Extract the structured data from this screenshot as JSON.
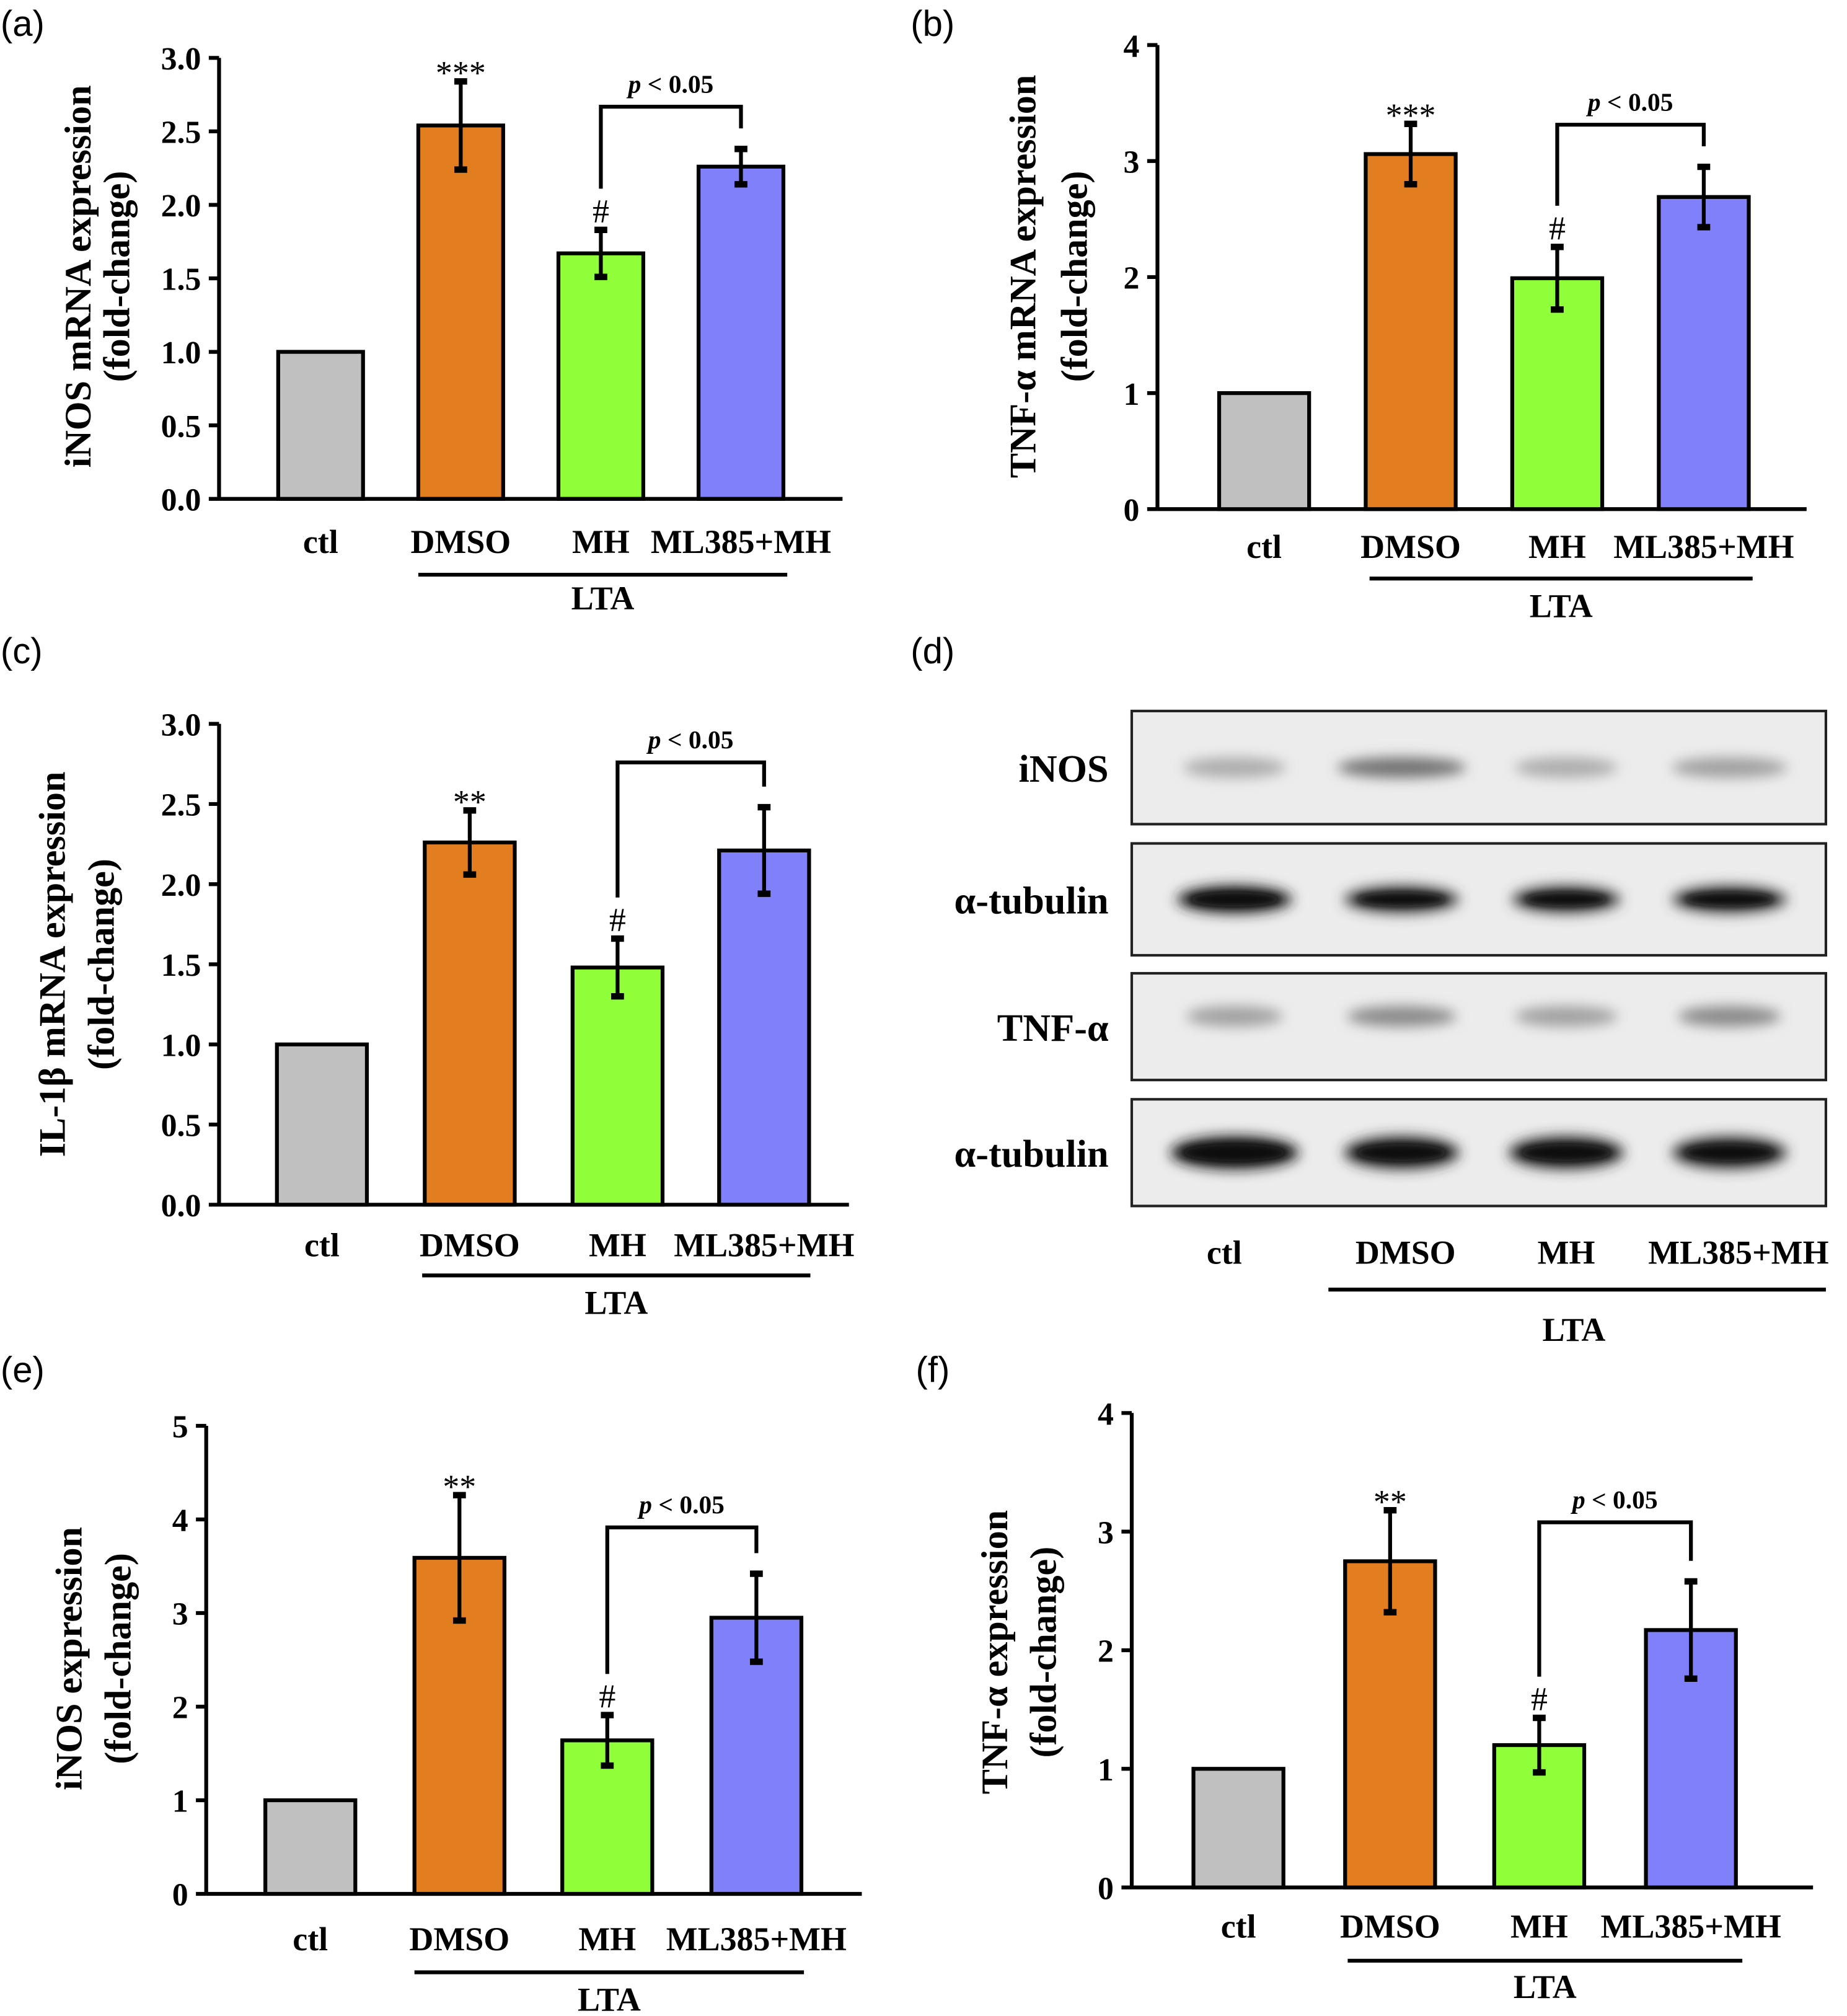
{
  "colors": {
    "ctl": "#C0C0C0",
    "DMSO": "#E37E20",
    "MH": "#90FF3A",
    "ML385+MH": "#8080FA"
  },
  "chart_data": [
    {
      "panel": "(a)",
      "type": "bar",
      "categories": [
        "ctl",
        "DMSO",
        "MH",
        "ML385+MH"
      ],
      "group_label": "LTA",
      "ylabel": [
        "iNOS mRNA expression",
        "(fold-change)"
      ],
      "ylim": [
        0,
        3.0
      ],
      "yticks": [
        "0.0",
        "0.5",
        "1.0",
        "1.5",
        "2.0",
        "2.5",
        "3.0"
      ],
      "values": [
        1.0,
        2.54,
        1.67,
        2.26
      ],
      "errors": [
        0,
        0.3,
        0.16,
        0.12
      ],
      "significance": [
        "",
        "***",
        "#",
        ""
      ],
      "comparison": {
        "between": [
          "MH",
          "ML385+MH"
        ],
        "label": "p < 0.05"
      }
    },
    {
      "panel": "(b)",
      "type": "bar",
      "categories": [
        "ctl",
        "DMSO",
        "MH",
        "ML385+MH"
      ],
      "group_label": "LTA",
      "ylabel": [
        "TNF-α mRNA expression",
        "(fold-change)"
      ],
      "ylim": [
        0,
        4
      ],
      "yticks": [
        "0",
        "1",
        "2",
        "3",
        "4"
      ],
      "values": [
        1.0,
        3.06,
        1.99,
        2.69
      ],
      "errors": [
        0,
        0.26,
        0.27,
        0.26
      ],
      "significance": [
        "",
        "***",
        "#",
        ""
      ],
      "comparison": {
        "between": [
          "MH",
          "ML385+MH"
        ],
        "label": "p < 0.05"
      }
    },
    {
      "panel": "(c)",
      "type": "bar",
      "categories": [
        "ctl",
        "DMSO",
        "MH",
        "ML385+MH"
      ],
      "group_label": "LTA",
      "ylabel": [
        "IL-1β mRNA expression",
        "(fold-change)"
      ],
      "ylim": [
        0,
        3.0
      ],
      "yticks": [
        "0.0",
        "0.5",
        "1.0",
        "1.5",
        "2.0",
        "2.5",
        "3.0"
      ],
      "values": [
        1.0,
        2.26,
        1.48,
        2.21
      ],
      "errors": [
        0,
        0.2,
        0.18,
        0.27
      ],
      "significance": [
        "",
        "**",
        "#",
        ""
      ],
      "comparison": {
        "between": [
          "MH",
          "ML385+MH"
        ],
        "label": "p < 0.05"
      }
    },
    {
      "panel": "(e)",
      "type": "bar",
      "categories": [
        "ctl",
        "DMSO",
        "MH",
        "ML385+MH"
      ],
      "group_label": "LTA",
      "ylabel": [
        "iNOS expression",
        "(fold-change)"
      ],
      "ylim": [
        0,
        5
      ],
      "yticks": [
        "0",
        "1",
        "2",
        "3",
        "4",
        "5"
      ],
      "values": [
        1.0,
        3.59,
        1.64,
        2.95
      ],
      "errors": [
        0,
        0.67,
        0.27,
        0.47
      ],
      "significance": [
        "",
        "**",
        "#",
        ""
      ],
      "comparison": {
        "between": [
          "MH",
          "ML385+MH"
        ],
        "label": "p < 0.05"
      }
    },
    {
      "panel": "(f)",
      "type": "bar",
      "categories": [
        "ctl",
        "DMSO",
        "MH",
        "ML385+MH"
      ],
      "group_label": "LTA",
      "ylabel": [
        "TNF-α expression",
        "(fold-change)"
      ],
      "ylim": [
        0,
        4
      ],
      "yticks": [
        "0",
        "1",
        "2",
        "3",
        "4"
      ],
      "values": [
        1.0,
        2.75,
        1.2,
        2.17
      ],
      "errors": [
        0,
        0.43,
        0.23,
        0.41
      ],
      "significance": [
        "",
        "**",
        "#",
        ""
      ],
      "comparison": {
        "between": [
          "MH",
          "ML385+MH"
        ],
        "label": "p < 0.05"
      }
    }
  ],
  "blot": {
    "panel": "(d)",
    "rows": [
      "iNOS",
      "α-tubulin",
      "TNF-α",
      "α-tubulin"
    ],
    "lanes": [
      "ctl",
      "DMSO",
      "MH",
      "ML385+MH"
    ],
    "group_label": "LTA"
  }
}
